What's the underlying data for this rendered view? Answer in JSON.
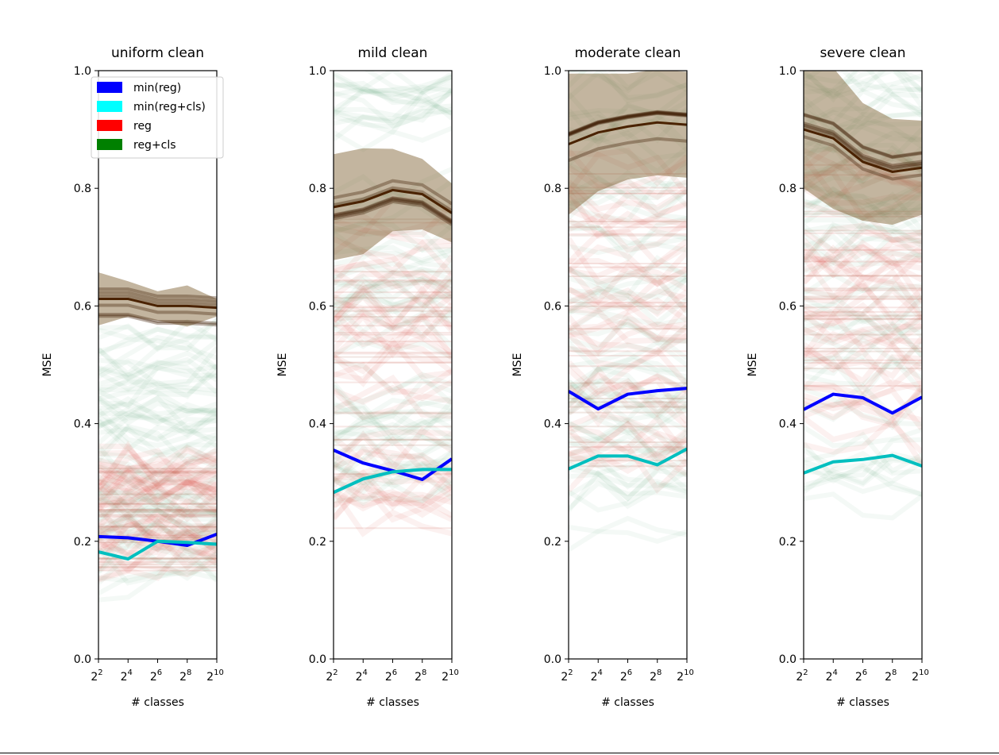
{
  "chart_data": [
    {
      "type": "line",
      "title": "uniform clean",
      "xlabel": "# classes",
      "ylabel": "MSE",
      "ylim": [
        0,
        1
      ],
      "x_exponents": [
        2,
        4,
        6,
        8,
        10
      ],
      "x_ticks": [
        {
          "base": "2",
          "exp": "2"
        },
        {
          "base": "2",
          "exp": "4"
        },
        {
          "base": "2",
          "exp": "6"
        },
        {
          "base": "2",
          "exp": "8"
        },
        {
          "base": "2",
          "exp": "10"
        }
      ],
      "y_ticks": [
        "0.0",
        "0.2",
        "0.4",
        "0.6",
        "0.8",
        "1.0"
      ],
      "series": [
        {
          "name": "min(reg)",
          "color": "#0000ff",
          "values": [
            0.208,
            0.206,
            0.2,
            0.193,
            0.212
          ]
        },
        {
          "name": "min(reg+cls)",
          "color": "#00bfbf",
          "values": [
            0.182,
            0.17,
            0.2,
            0.198,
            0.195
          ]
        }
      ],
      "bands": {
        "brown_center": [
          0.612,
          0.612,
          0.6,
          0.6,
          0.597
        ],
        "brown_spread": [
          0.045,
          0.03,
          0.025,
          0.035,
          0.015
        ],
        "red_range": [
          0.15,
          0.34
        ],
        "green_range": [
          0.12,
          0.56
        ]
      },
      "legend": {
        "position": "upper-left",
        "entries": [
          {
            "label": "min(reg)",
            "color": "#0000ff"
          },
          {
            "label": "min(reg+cls)",
            "color": "#00ffff"
          },
          {
            "label": "reg",
            "color": "#ff0000"
          },
          {
            "label": "reg+cls",
            "color": "#008000"
          }
        ]
      }
    },
    {
      "type": "line",
      "title": "mild clean",
      "xlabel": "# classes",
      "ylabel": "MSE",
      "ylim": [
        0,
        1
      ],
      "x_exponents": [
        2,
        4,
        6,
        8,
        10
      ],
      "x_ticks": [
        {
          "base": "2",
          "exp": "2"
        },
        {
          "base": "2",
          "exp": "4"
        },
        {
          "base": "2",
          "exp": "6"
        },
        {
          "base": "2",
          "exp": "8"
        },
        {
          "base": "2",
          "exp": "10"
        }
      ],
      "y_ticks": [
        "0.0",
        "0.2",
        "0.4",
        "0.6",
        "0.8",
        "1.0"
      ],
      "series": [
        {
          "name": "min(reg)",
          "color": "#0000ff",
          "values": [
            0.355,
            0.333,
            0.32,
            0.305,
            0.34
          ]
        },
        {
          "name": "min(reg+cls)",
          "color": "#00bfbf",
          "values": [
            0.283,
            0.306,
            0.318,
            0.322,
            0.322
          ]
        }
      ],
      "bands": {
        "brown_center": [
          0.768,
          0.778,
          0.797,
          0.79,
          0.758
        ],
        "brown_spread": [
          0.09,
          0.09,
          0.07,
          0.06,
          0.05
        ],
        "red_range": [
          0.22,
          0.75
        ],
        "green_range": [
          0.28,
          1.0
        ]
      }
    },
    {
      "type": "line",
      "title": "moderate clean",
      "xlabel": "# classes",
      "ylabel": "MSE",
      "ylim": [
        0,
        1
      ],
      "x_exponents": [
        2,
        4,
        6,
        8,
        10
      ],
      "x_ticks": [
        {
          "base": "2",
          "exp": "2"
        },
        {
          "base": "2",
          "exp": "4"
        },
        {
          "base": "2",
          "exp": "6"
        },
        {
          "base": "2",
          "exp": "8"
        },
        {
          "base": "2",
          "exp": "10"
        }
      ],
      "y_ticks": [
        "0.0",
        "0.2",
        "0.4",
        "0.6",
        "0.8",
        "1.0"
      ],
      "series": [
        {
          "name": "min(reg)",
          "color": "#0000ff",
          "values": [
            0.455,
            0.425,
            0.45,
            0.456,
            0.46
          ]
        },
        {
          "name": "min(reg+cls)",
          "color": "#00bfbf",
          "values": [
            0.323,
            0.345,
            0.345,
            0.33,
            0.357
          ]
        }
      ],
      "bands": {
        "brown_center": [
          0.875,
          0.895,
          0.905,
          0.912,
          0.908
        ],
        "brown_spread": [
          0.12,
          0.1,
          0.09,
          0.09,
          0.09
        ],
        "red_range": [
          0.32,
          0.85
        ],
        "green_range": [
          0.2,
          1.0
        ]
      }
    },
    {
      "type": "line",
      "title": "severe clean",
      "xlabel": "# classes",
      "ylabel": "MSE",
      "ylim": [
        0,
        1
      ],
      "x_exponents": [
        2,
        4,
        6,
        8,
        10
      ],
      "x_ticks": [
        {
          "base": "2",
          "exp": "2"
        },
        {
          "base": "2",
          "exp": "4"
        },
        {
          "base": "2",
          "exp": "6"
        },
        {
          "base": "2",
          "exp": "8"
        },
        {
          "base": "2",
          "exp": "10"
        }
      ],
      "y_ticks": [
        "0.0",
        "0.2",
        "0.4",
        "0.6",
        "0.8",
        "1.0"
      ],
      "series": [
        {
          "name": "min(reg)",
          "color": "#0000ff",
          "values": [
            0.424,
            0.45,
            0.444,
            0.418,
            0.445
          ]
        },
        {
          "name": "min(reg+cls)",
          "color": "#00bfbf",
          "values": [
            0.316,
            0.335,
            0.339,
            0.346,
            0.328
          ]
        }
      ],
      "bands": {
        "brown_center": [
          0.9,
          0.885,
          0.845,
          0.828,
          0.835
        ],
        "brown_spread": [
          0.1,
          0.12,
          0.1,
          0.09,
          0.08
        ],
        "red_range": [
          0.36,
          0.85
        ],
        "green_range": [
          0.25,
          1.0
        ]
      }
    }
  ]
}
